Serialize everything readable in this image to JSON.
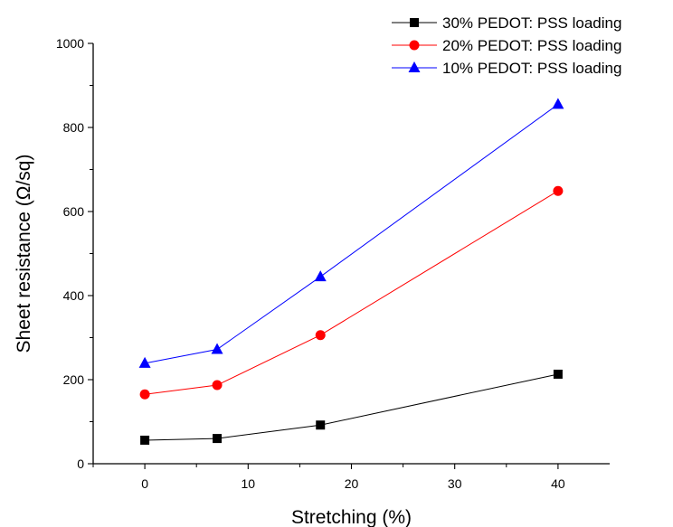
{
  "chart_data": {
    "type": "line",
    "xlabel": "Stretching (%)",
    "ylabel": "Sheet resistance (Ω/sq)",
    "xlim": [
      -5,
      45
    ],
    "ylim": [
      0,
      1000
    ],
    "x_ticks": [
      0,
      10,
      20,
      30,
      40
    ],
    "y_ticks": [
      0,
      200,
      400,
      600,
      800,
      1000
    ],
    "legend_position": "top-right",
    "grid": false,
    "x": [
      0,
      7,
      17,
      40
    ],
    "series": [
      {
        "name": "30% PEDOT: PSS loading",
        "color": "#000000",
        "marker": "square",
        "values": [
          56,
          60,
          92,
          213
        ]
      },
      {
        "name": "20% PEDOT: PSS loading",
        "color": "#ff0000",
        "marker": "circle",
        "values": [
          165,
          187,
          306,
          649
        ]
      },
      {
        "name": "10% PEDOT: PSS loading",
        "color": "#0000ff",
        "marker": "triangle",
        "values": [
          239,
          272,
          445,
          855
        ]
      }
    ]
  }
}
